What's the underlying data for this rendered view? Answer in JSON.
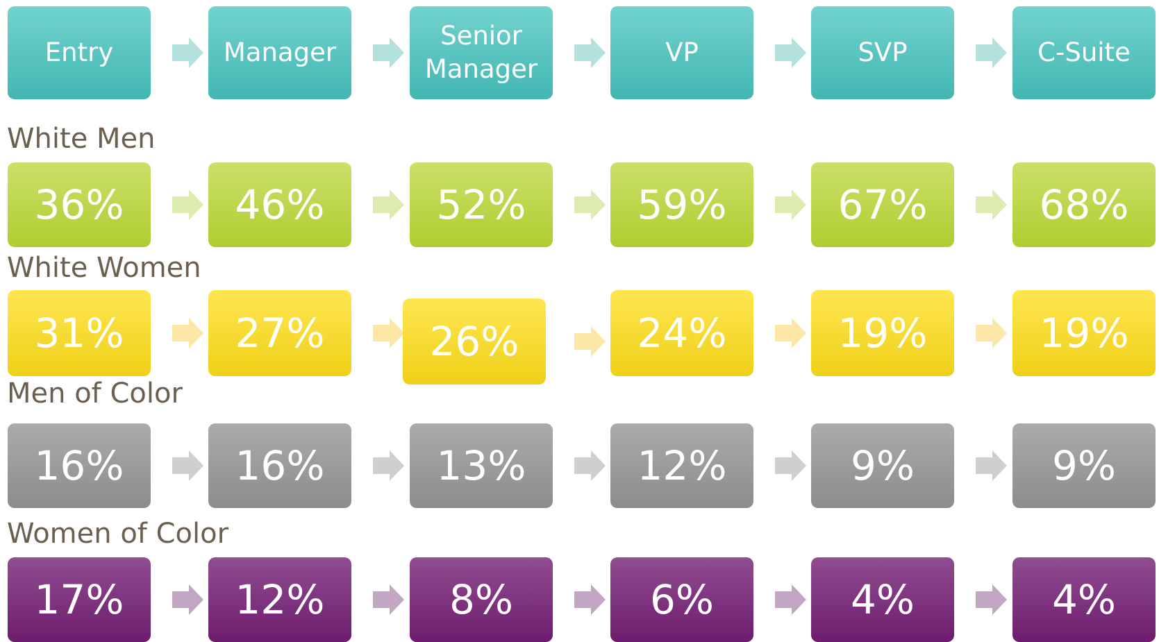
{
  "stages": [
    "Entry",
    "Manager",
    "Senior Manager",
    "VP",
    "SVP",
    "C-Suite"
  ],
  "groups": [
    {
      "name": "White Men",
      "values": [
        "36%",
        "46%",
        "52%",
        "59%",
        "67%",
        "68%"
      ]
    },
    {
      "name": "White Women",
      "values": [
        "31%",
        "27%",
        "26%",
        "24%",
        "19%",
        "19%"
      ]
    },
    {
      "name": "Men of Color",
      "values": [
        "16%",
        "16%",
        "13%",
        "12%",
        "9%",
        "9%"
      ]
    },
    {
      "name": "Women of Color",
      "values": [
        "17%",
        "12%",
        "8%",
        "6%",
        "4%",
        "4%"
      ]
    }
  ]
}
